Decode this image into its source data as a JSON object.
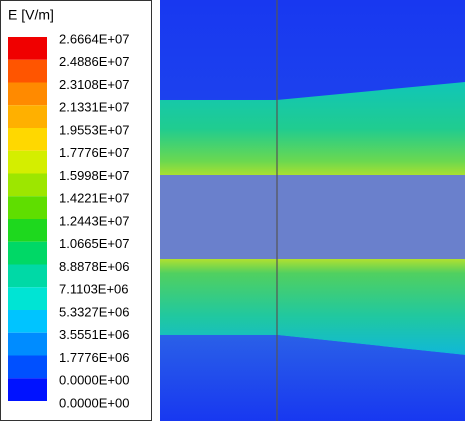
{
  "legend": {
    "title": "E [V/m]",
    "labels": [
      "2.6664E+07",
      "2.4886E+07",
      "2.3108E+07",
      "2.1331E+07",
      "1.9553E+07",
      "1.7776E+07",
      "1.5998E+07",
      "1.4221E+07",
      "1.2443E+07",
      "1.0665E+07",
      "8.8878E+06",
      "7.1103E+06",
      "5.3327E+06",
      "3.5551E+06",
      "1.7776E+06",
      "0.0000E+00"
    ],
    "last_label": "0.0000E+00",
    "colors": [
      "#f00000",
      "#ff5500",
      "#ff8a00",
      "#ffb000",
      "#ffd800",
      "#d4ee00",
      "#9de600",
      "#5fde00",
      "#1ed81e",
      "#00d866",
      "#00d9a6",
      "#00e4d4",
      "#00c4ff",
      "#008cff",
      "#0050ff",
      "#0012ff"
    ]
  }
}
